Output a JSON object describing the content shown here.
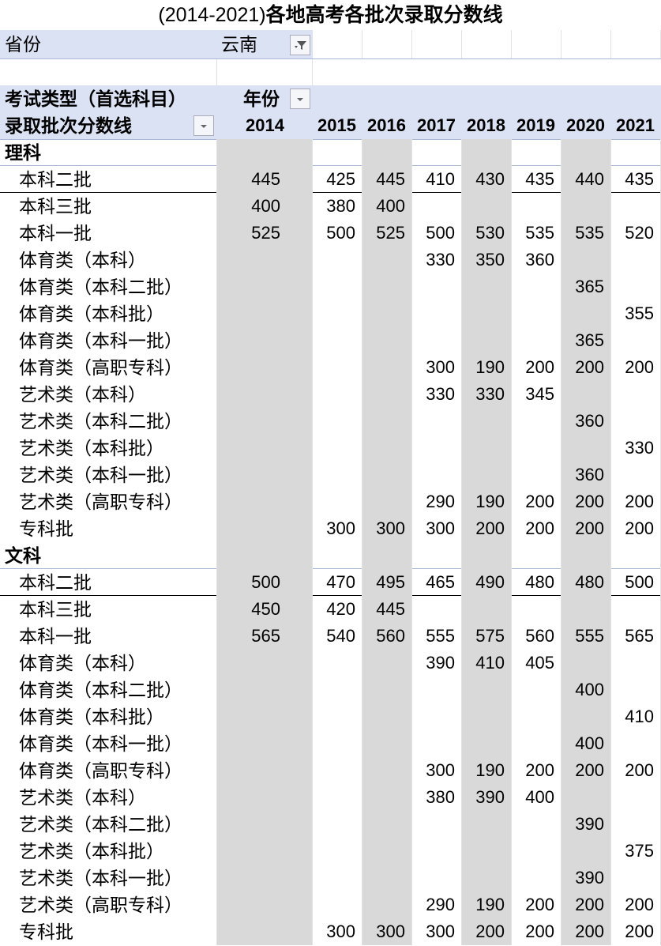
{
  "title_years": "(2014-2021)",
  "title_main": "各地高考各批次录取分数线",
  "filter": {
    "label": "省份",
    "value": "云南",
    "icon": "filter-icon"
  },
  "header": {
    "row_field": "考试类型（首选科目）",
    "col_field": "年份",
    "value_field": "录取批次分数线"
  },
  "years": [
    "2014",
    "2015",
    "2016",
    "2017",
    "2018",
    "2019",
    "2020",
    "2021"
  ],
  "colors": {
    "header_band": "#dbe2f3",
    "stripe": "#d9d9d9"
  },
  "groups": [
    {
      "name": "理科",
      "rows": [
        {
          "label": "本科二批",
          "values": [
            "445",
            "425",
            "445",
            "410",
            "430",
            "435",
            "440",
            "435"
          ]
        },
        {
          "label": "本科三批",
          "values": [
            "400",
            "380",
            "400",
            "",
            "",
            "",
            "",
            ""
          ]
        },
        {
          "label": "本科一批",
          "values": [
            "525",
            "500",
            "525",
            "500",
            "530",
            "535",
            "535",
            "520"
          ]
        },
        {
          "label": "体育类（本科）",
          "values": [
            "",
            "",
            "",
            "330",
            "350",
            "360",
            "",
            ""
          ]
        },
        {
          "label": "体育类（本科二批）",
          "values": [
            "",
            "",
            "",
            "",
            "",
            "",
            "365",
            ""
          ]
        },
        {
          "label": "体育类（本科批）",
          "values": [
            "",
            "",
            "",
            "",
            "",
            "",
            "",
            "355"
          ]
        },
        {
          "label": "体育类（本科一批）",
          "values": [
            "",
            "",
            "",
            "",
            "",
            "",
            "365",
            ""
          ]
        },
        {
          "label": "体育类（高职专科）",
          "values": [
            "",
            "",
            "",
            "300",
            "190",
            "200",
            "200",
            "200"
          ]
        },
        {
          "label": "艺术类（本科）",
          "values": [
            "",
            "",
            "",
            "330",
            "330",
            "345",
            "",
            ""
          ]
        },
        {
          "label": "艺术类（本科二批）",
          "values": [
            "",
            "",
            "",
            "",
            "",
            "",
            "360",
            ""
          ]
        },
        {
          "label": "艺术类（本科批）",
          "values": [
            "",
            "",
            "",
            "",
            "",
            "",
            "",
            "330"
          ]
        },
        {
          "label": "艺术类（本科一批）",
          "values": [
            "",
            "",
            "",
            "",
            "",
            "",
            "360",
            ""
          ]
        },
        {
          "label": "艺术类（高职专科）",
          "values": [
            "",
            "",
            "",
            "290",
            "190",
            "200",
            "200",
            "200"
          ]
        },
        {
          "label": "专科批",
          "values": [
            "",
            "300",
            "300",
            "300",
            "200",
            "200",
            "200",
            "200"
          ]
        }
      ]
    },
    {
      "name": "文科",
      "rows": [
        {
          "label": "本科二批",
          "values": [
            "500",
            "470",
            "495",
            "465",
            "490",
            "480",
            "480",
            "500"
          ]
        },
        {
          "label": "本科三批",
          "values": [
            "450",
            "420",
            "445",
            "",
            "",
            "",
            "",
            ""
          ]
        },
        {
          "label": "本科一批",
          "values": [
            "565",
            "540",
            "560",
            "555",
            "575",
            "560",
            "555",
            "565"
          ]
        },
        {
          "label": "体育类（本科）",
          "values": [
            "",
            "",
            "",
            "390",
            "410",
            "405",
            "",
            ""
          ]
        },
        {
          "label": "体育类（本科二批）",
          "values": [
            "",
            "",
            "",
            "",
            "",
            "",
            "400",
            ""
          ]
        },
        {
          "label": "体育类（本科批）",
          "values": [
            "",
            "",
            "",
            "",
            "",
            "",
            "",
            "410"
          ]
        },
        {
          "label": "体育类（本科一批）",
          "values": [
            "",
            "",
            "",
            "",
            "",
            "",
            "400",
            ""
          ]
        },
        {
          "label": "体育类（高职专科）",
          "values": [
            "",
            "",
            "",
            "300",
            "190",
            "200",
            "200",
            "200"
          ]
        },
        {
          "label": "艺术类（本科）",
          "values": [
            "",
            "",
            "",
            "380",
            "390",
            "400",
            "",
            ""
          ]
        },
        {
          "label": "艺术类（本科二批）",
          "values": [
            "",
            "",
            "",
            "",
            "",
            "",
            "390",
            ""
          ]
        },
        {
          "label": "艺术类（本科批）",
          "values": [
            "",
            "",
            "",
            "",
            "",
            "",
            "",
            "375"
          ]
        },
        {
          "label": "艺术类（本科一批）",
          "values": [
            "",
            "",
            "",
            "",
            "",
            "",
            "390",
            ""
          ]
        },
        {
          "label": "艺术类（高职专科）",
          "values": [
            "",
            "",
            "",
            "290",
            "190",
            "200",
            "200",
            "200"
          ]
        },
        {
          "label": "专科批",
          "values": [
            "",
            "300",
            "300",
            "300",
            "200",
            "200",
            "200",
            "200"
          ]
        }
      ]
    }
  ]
}
